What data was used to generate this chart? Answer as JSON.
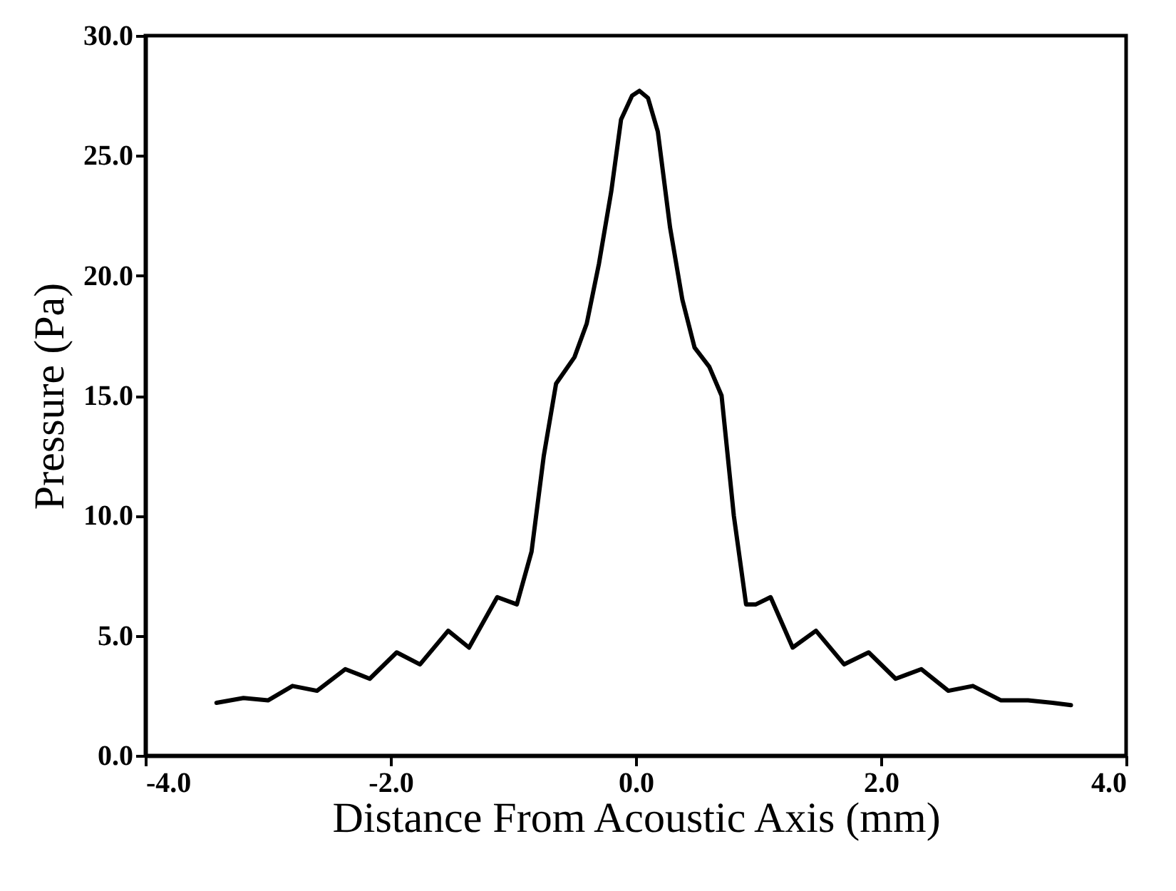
{
  "chart_data": {
    "type": "line",
    "xlabel": "Distance From Acoustic Axis (mm)",
    "ylabel": "Pressure (Pa)",
    "x": [
      -3.42,
      -3.2,
      -3.0,
      -2.8,
      -2.6,
      -2.37,
      -2.17,
      -1.95,
      -1.76,
      -1.53,
      -1.36,
      -1.13,
      -0.97,
      -0.85,
      -0.75,
      -0.65,
      -0.5,
      -0.4,
      -0.3,
      -0.2,
      -0.12,
      -0.03,
      0.03,
      0.1,
      0.18,
      0.28,
      0.38,
      0.48,
      0.6,
      0.7,
      0.8,
      0.9,
      0.98,
      1.1,
      1.28,
      1.47,
      1.7,
      1.9,
      2.12,
      2.33,
      2.55,
      2.75,
      2.98,
      3.2,
      3.4,
      3.55
    ],
    "series": [
      {
        "color": "#000000",
        "values": [
          2.2,
          2.4,
          2.3,
          2.9,
          2.7,
          3.6,
          3.2,
          4.3,
          3.8,
          5.2,
          4.5,
          6.6,
          6.3,
          8.5,
          12.5,
          15.5,
          16.6,
          18,
          20.5,
          23.5,
          26.5,
          27.5,
          27.7,
          27.4,
          26,
          22,
          19,
          17,
          16.2,
          15,
          10,
          6.3,
          6.3,
          6.6,
          4.5,
          5.2,
          3.8,
          4.3,
          3.2,
          3.6,
          2.7,
          2.9,
          2.3,
          2.3,
          2.2,
          2.1
        ]
      }
    ],
    "xlim": [
      -4,
      4
    ],
    "ylim": [
      0,
      30
    ],
    "xticks": [
      {
        "value": -4,
        "label": "-4.0"
      },
      {
        "value": -2,
        "label": "-2.0"
      },
      {
        "value": 0,
        "label": "0.0"
      },
      {
        "value": 2,
        "label": "2.0"
      },
      {
        "value": 4,
        "label": "4.0"
      }
    ],
    "yticks": [
      {
        "value": 0,
        "label": "0.0"
      },
      {
        "value": 5,
        "label": "5.0"
      },
      {
        "value": 10,
        "label": "10.0"
      },
      {
        "value": 15,
        "label": "15.0"
      },
      {
        "value": 20,
        "label": "20.0"
      },
      {
        "value": 25,
        "label": "25.0"
      },
      {
        "value": 30,
        "label": "30.0"
      }
    ],
    "grid": false,
    "legend": false,
    "marker": "none",
    "line_style": "solid"
  }
}
